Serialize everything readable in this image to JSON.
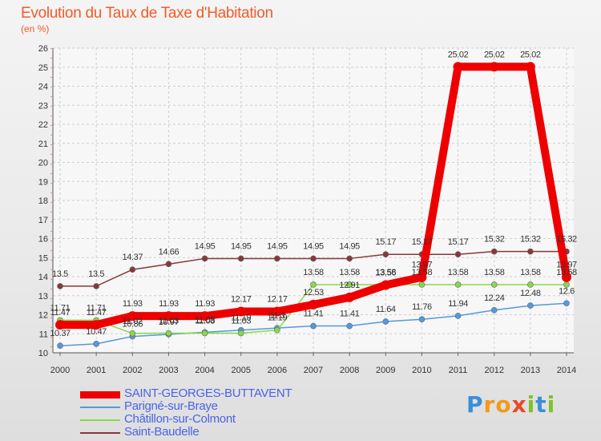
{
  "title": "Evolution du Taux de Taxe d'Habitation",
  "unit_label": "(en %)",
  "brand": "Proxiti",
  "chart_data": {
    "type": "line",
    "title": "Evolution du Taux de Taxe d'Habitation",
    "ylabel": "(en %)",
    "x": [
      2000,
      2001,
      2002,
      2003,
      2004,
      2005,
      2006,
      2007,
      2008,
      2009,
      2010,
      2011,
      2012,
      2013,
      2014
    ],
    "ylim": [
      10,
      26
    ],
    "yticks": [
      10,
      11,
      12,
      13,
      14,
      15,
      16,
      17,
      18,
      19,
      20,
      21,
      22,
      23,
      24,
      25,
      26
    ],
    "grid": true,
    "legend_position": "bottom-left",
    "series": [
      {
        "name": "SAINT-GEORGES-BUTTAVENT",
        "color": "#ee0000",
        "values": [
          11.47,
          11.47,
          11.93,
          11.93,
          11.93,
          12.17,
          12.17,
          12.53,
          12.91,
          13.56,
          13.97,
          25.02,
          25.02,
          25.02,
          13.97
        ],
        "labels": [
          "11.47",
          "11.47",
          "11.93",
          "11.93",
          "11.93",
          "12.17",
          "12.17",
          "12.53",
          "12.91",
          "13.56",
          "13.97",
          "25.02",
          "25.02",
          "25.02",
          "13.97"
        ]
      },
      {
        "name": "Parigné-sur-Braye",
        "color": "#5599dd",
        "values": [
          10.37,
          10.47,
          10.86,
          10.97,
          11.08,
          11.19,
          11.3,
          11.41,
          11.41,
          11.64,
          11.76,
          11.94,
          12.24,
          12.48,
          12.6
        ],
        "labels": [
          "10.37",
          "10.47",
          "10.86",
          "10.97",
          "11.08",
          "11.19",
          "11.3",
          "11.41",
          "11.41",
          "11.64",
          "11.76",
          "11.94",
          "12.24",
          "12.48",
          "12.6"
        ]
      },
      {
        "name": "Châtillon-sur-Colmont",
        "color": "#88d84a",
        "values": [
          11.71,
          11.71,
          11.02,
          11.03,
          11.03,
          11.03,
          11.19,
          13.58,
          13.58,
          13.58,
          13.58,
          13.58,
          13.58,
          13.58,
          13.58
        ],
        "labels": [
          "11.71",
          "11.71",
          "11.02",
          "11.03",
          "11.03",
          "11.03",
          "11.19",
          "13.58",
          "13.58",
          "13.58",
          "13.58",
          "13.58",
          "13.58",
          "13.58",
          "13.58"
        ]
      },
      {
        "name": "Saint-Baudelle",
        "color": "#883838",
        "values": [
          13.5,
          13.5,
          14.37,
          14.66,
          14.95,
          14.95,
          14.95,
          14.95,
          14.95,
          15.17,
          15.17,
          15.17,
          15.32,
          15.32,
          15.32
        ],
        "labels": [
          "13.5",
          "13.5",
          "14.37",
          "14.66",
          "14.95",
          "14.95",
          "14.95",
          "14.95",
          "14.95",
          "15.17",
          "15.17",
          "15.17",
          "15.32",
          "15.32",
          "15.32"
        ]
      }
    ]
  }
}
